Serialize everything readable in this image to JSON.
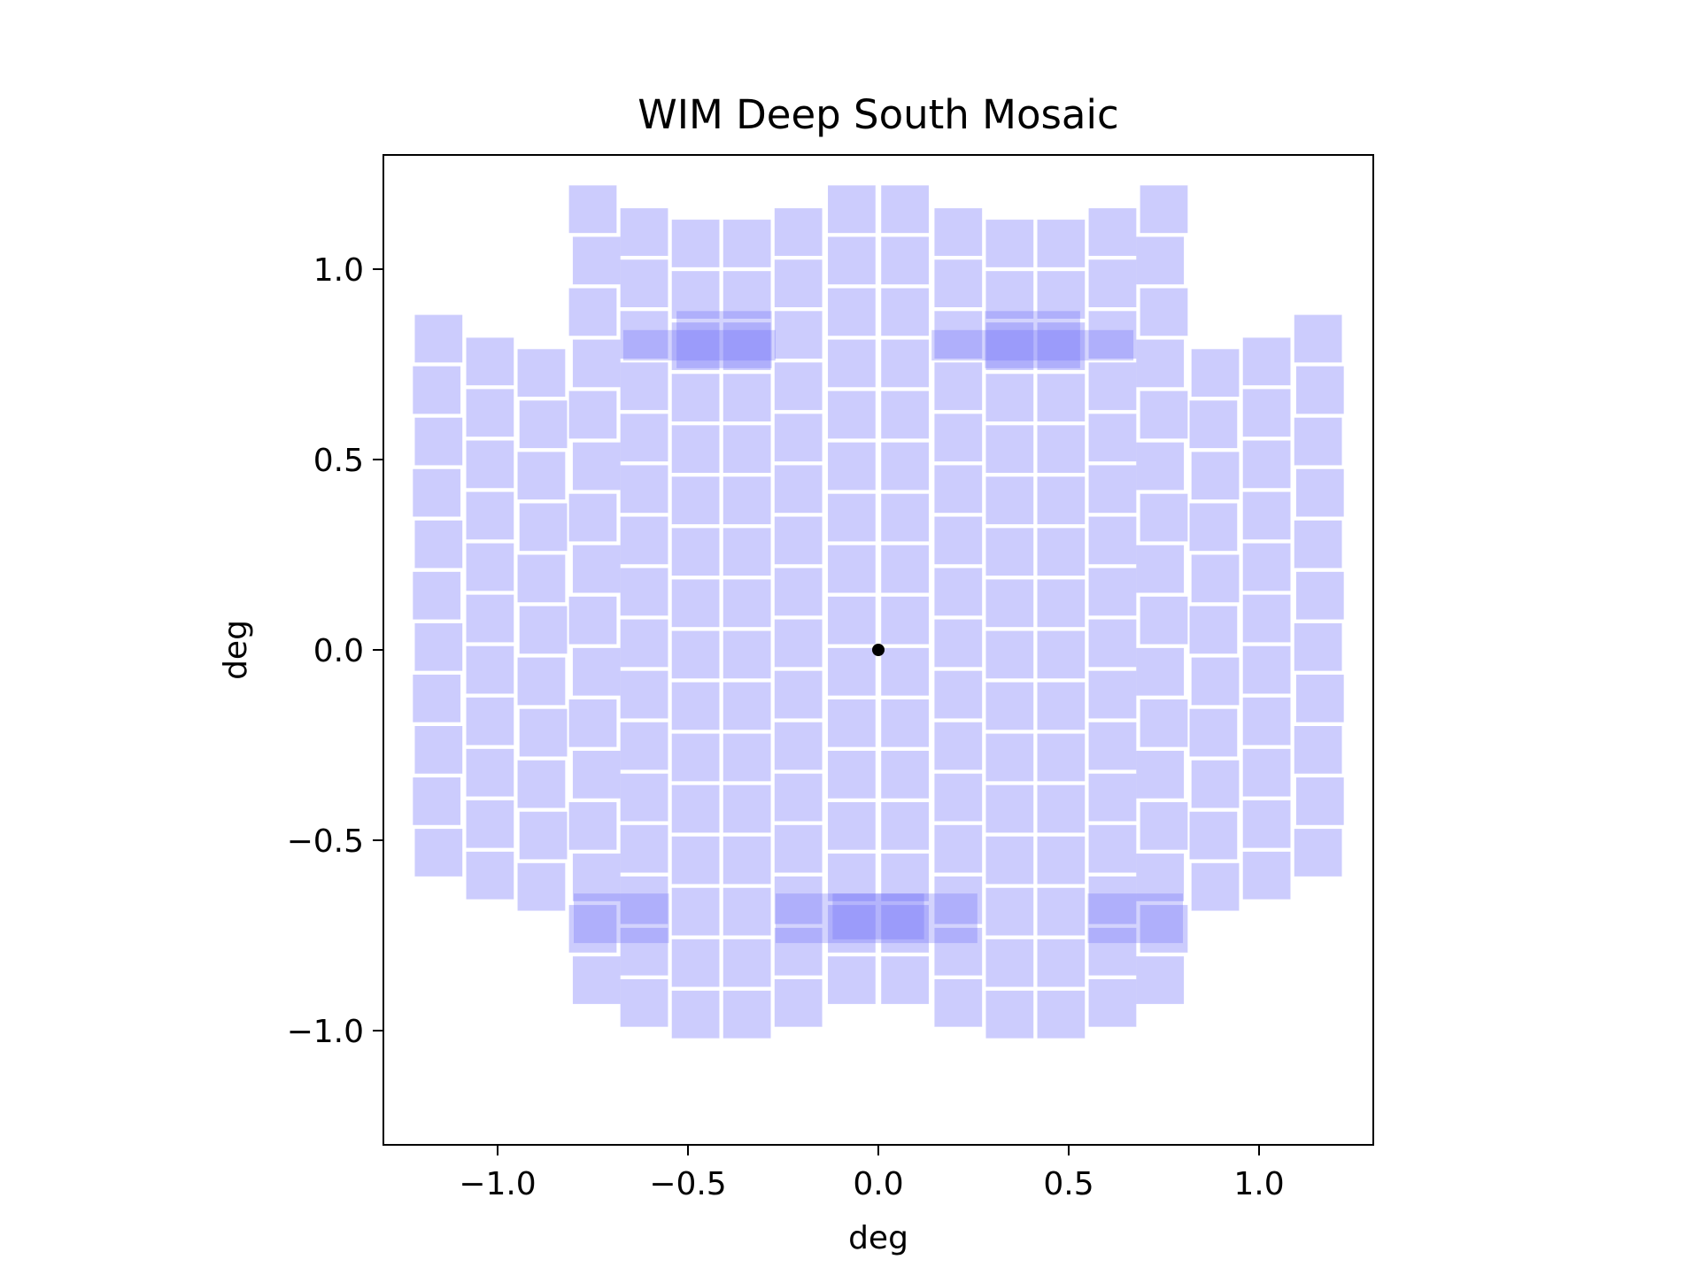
{
  "chart_data": {
    "type": "scatter",
    "title": "WIM Deep South Mosaic",
    "xlabel": "deg",
    "ylabel": "deg",
    "xlim": [
      -1.3,
      1.3
    ],
    "ylim": [
      -1.3,
      1.3
    ],
    "xticks": [
      -1.0,
      -0.5,
      0.0,
      0.5,
      1.0
    ],
    "xtick_labels": [
      "−1.0",
      "−0.5",
      "0.0",
      "0.5",
      "1.0"
    ],
    "yticks": [
      -1.0,
      -0.5,
      0.0,
      0.5,
      1.0
    ],
    "ytick_labels": [
      "−1.0",
      "−0.5",
      "0.0",
      "0.5",
      "1.0"
    ],
    "grid": false,
    "chip_color": "#6e6efa",
    "chip_opacity": 0.35,
    "chip_size_deg": 0.125,
    "columns": [
      {
        "x": -1.155,
        "y_top": 0.88,
        "y_bottom": -0.7,
        "shift": -0.005
      },
      {
        "x": -1.02,
        "y_top": 0.82,
        "y_bottom": -0.76,
        "shift": 0.0
      },
      {
        "x": -0.885,
        "y_top": 0.79,
        "y_bottom": -0.79,
        "shift": 0.005
      },
      {
        "x": -0.75,
        "y_top": 1.22,
        "y_bottom": -1.03,
        "shift": 0.01,
        "gap": [
          0.79,
          -0.63
        ]
      },
      {
        "x": -0.615,
        "y_top": 1.16,
        "y_bottom": -1.1,
        "shift": 0.0
      },
      {
        "x": -0.48,
        "y_top": 1.13,
        "y_bottom": -1.13,
        "shift": 0.0
      },
      {
        "x": -0.345,
        "y_top": 1.13,
        "y_bottom": -1.13,
        "shift": 0.0
      },
      {
        "x": -0.21,
        "y_top": 1.16,
        "y_bottom": -1.1,
        "shift": 0.0,
        "gap": [
          0.76,
          -0.7
        ]
      },
      {
        "x": -0.07,
        "y_top": 1.22,
        "y_bottom": -0.95,
        "shift": 0.0,
        "gap": [
          0.79,
          -0.63
        ]
      },
      {
        "x": 0.07,
        "y_top": 1.22,
        "y_bottom": -0.95,
        "shift": 0.0,
        "gap": [
          0.79,
          -0.63
        ]
      },
      {
        "x": 0.21,
        "y_top": 1.16,
        "y_bottom": -1.1,
        "shift": 0.0,
        "gap": [
          0.76,
          -0.7
        ]
      },
      {
        "x": 0.345,
        "y_top": 1.13,
        "y_bottom": -1.13,
        "shift": 0.0
      },
      {
        "x": 0.48,
        "y_top": 1.13,
        "y_bottom": -1.13,
        "shift": 0.0
      },
      {
        "x": 0.615,
        "y_top": 1.16,
        "y_bottom": -1.1,
        "shift": 0.0
      },
      {
        "x": 0.75,
        "y_top": 1.22,
        "y_bottom": -1.03,
        "shift": -0.01,
        "gap": [
          0.79,
          -0.63
        ]
      },
      {
        "x": 0.885,
        "y_top": 0.79,
        "y_bottom": -0.79,
        "shift": -0.005
      },
      {
        "x": 1.02,
        "y_top": 0.82,
        "y_bottom": -0.76,
        "shift": 0.0
      },
      {
        "x": 1.155,
        "y_top": 0.88,
        "y_bottom": -0.7,
        "shift": 0.005
      }
    ],
    "overlaps": [
      {
        "x0": -0.67,
        "x1": -0.27,
        "y0": 0.76,
        "y1": 0.84
      },
      {
        "x0": -0.53,
        "x1": -0.28,
        "y0": 0.74,
        "y1": 0.89
      },
      {
        "x0": 0.14,
        "x1": 0.54,
        "y0": 0.76,
        "y1": 0.84
      },
      {
        "x0": 0.28,
        "x1": 0.53,
        "y0": 0.74,
        "y1": 0.89
      },
      {
        "x0": 0.54,
        "x1": 0.67,
        "y0": 0.76,
        "y1": 0.84
      },
      {
        "x0": -0.8,
        "x1": -0.55,
        "y0": -0.77,
        "y1": -0.64
      },
      {
        "x0": -0.27,
        "x1": 0.26,
        "y0": -0.77,
        "y1": -0.64
      },
      {
        "x0": 0.55,
        "x1": 0.8,
        "y0": -0.77,
        "y1": -0.64
      },
      {
        "x0": -0.12,
        "x1": 0.12,
        "y0": -0.76,
        "y1": -0.64
      }
    ],
    "center_point": {
      "x": 0.0,
      "y": 0.0
    }
  }
}
